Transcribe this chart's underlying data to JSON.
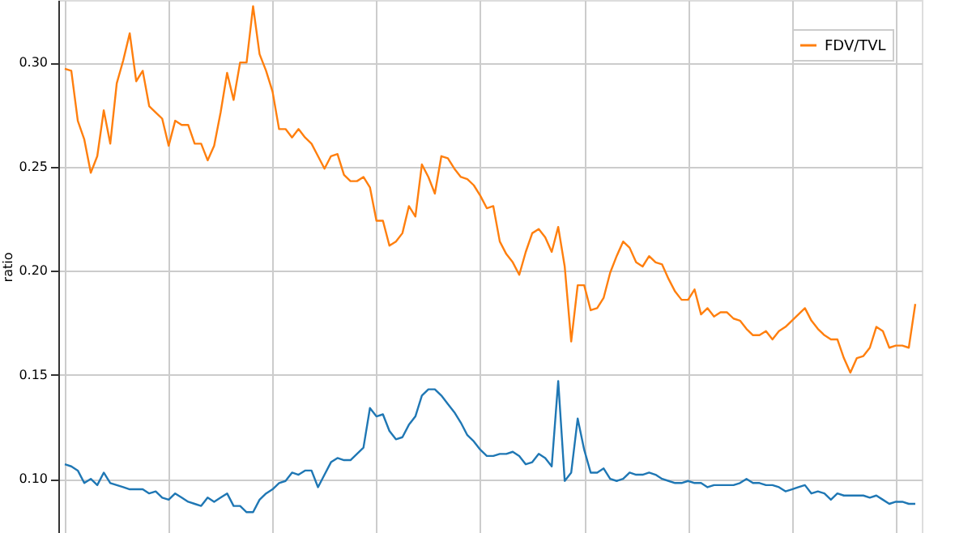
{
  "chart_data": {
    "type": "line",
    "ylabel": "ratio",
    "categories": [
      null,
      null,
      null,
      null,
      null,
      null,
      null,
      null,
      null,
      null,
      null,
      null,
      null,
      null,
      null,
      null,
      null,
      null,
      null,
      null,
      null,
      null,
      null,
      null,
      null,
      null,
      null,
      null,
      null,
      null,
      null,
      null,
      null,
      null,
      null,
      null,
      null,
      null,
      null,
      null,
      null,
      null,
      null,
      null,
      null,
      null,
      null,
      null,
      null,
      null,
      null,
      null,
      null,
      null,
      null,
      null,
      null,
      null,
      null,
      null,
      null,
      null,
      null,
      null,
      null,
      null,
      null,
      null,
      null,
      null,
      null,
      null,
      null,
      null,
      null,
      null,
      null,
      null,
      null,
      null,
      null,
      null,
      null,
      null,
      null,
      null,
      null,
      null,
      null,
      null,
      null,
      null,
      null,
      null,
      null,
      null,
      null,
      null,
      null,
      null,
      null,
      null,
      null,
      null,
      null,
      null,
      null,
      null,
      null,
      null,
      null,
      null,
      null,
      null,
      null,
      null,
      null,
      null,
      null,
      null,
      null,
      null,
      null,
      null,
      null,
      null,
      null,
      null,
      null,
      null,
      null,
      null
    ],
    "series": [
      {
        "color": "#1f77b4",
        "values": [
          0.107,
          0.106,
          0.104,
          0.098,
          0.1,
          0.097,
          0.103,
          0.098,
          0.097,
          0.096,
          0.095,
          0.095,
          0.095,
          0.093,
          0.094,
          0.091,
          0.09,
          0.093,
          0.091,
          0.089,
          0.088,
          0.087,
          0.091,
          0.089,
          0.091,
          0.093,
          0.087,
          0.087,
          0.084,
          0.084,
          0.09,
          0.093,
          0.095,
          0.098,
          0.099,
          0.103,
          0.102,
          0.104,
          0.104,
          0.096,
          0.102,
          0.108,
          0.11,
          0.109,
          0.109,
          0.112,
          0.115,
          0.134,
          0.13,
          0.131,
          0.123,
          0.119,
          0.12,
          0.126,
          0.13,
          0.14,
          0.143,
          0.143,
          0.14,
          0.136,
          0.132,
          0.127,
          0.121,
          0.118,
          0.114,
          0.111,
          0.111,
          0.112,
          0.112,
          0.113,
          0.111,
          0.107,
          0.108,
          0.112,
          0.11,
          0.106,
          0.147,
          0.099,
          0.103,
          0.129,
          0.114,
          0.103,
          0.103,
          0.105,
          0.1,
          0.099,
          0.1,
          0.103,
          0.102,
          0.102,
          0.103,
          0.102,
          0.1,
          0.099,
          0.098,
          0.098,
          0.099,
          0.098,
          0.098,
          0.096,
          0.097,
          0.097,
          0.097,
          0.097,
          0.098,
          0.1,
          0.098,
          0.098,
          0.097,
          0.097,
          0.096,
          0.094,
          0.095,
          0.096,
          0.097,
          0.093,
          0.094,
          0.093,
          0.09,
          0.093,
          0.092,
          0.092,
          0.092,
          0.092,
          0.091,
          0.092,
          0.09,
          0.088,
          0.089,
          0.089,
          0.088,
          0.088
        ]
      },
      {
        "name": "FDV/TVL",
        "color": "#ff7f0e",
        "values": [
          0.297,
          0.296,
          0.272,
          0.263,
          0.247,
          0.255,
          0.277,
          0.261,
          0.29,
          0.301,
          0.314,
          0.291,
          0.296,
          0.279,
          0.276,
          0.273,
          0.26,
          0.272,
          0.27,
          0.27,
          0.261,
          0.261,
          0.253,
          0.26,
          0.276,
          0.295,
          0.282,
          0.3,
          0.3,
          0.327,
          0.304,
          0.296,
          0.286,
          0.268,
          0.268,
          0.264,
          0.268,
          0.264,
          0.261,
          0.255,
          0.249,
          0.255,
          0.256,
          0.246,
          0.243,
          0.243,
          0.245,
          0.24,
          0.224,
          0.224,
          0.212,
          0.214,
          0.218,
          0.231,
          0.226,
          0.251,
          0.245,
          0.237,
          0.255,
          0.254,
          0.249,
          0.245,
          0.244,
          0.241,
          0.236,
          0.23,
          0.231,
          0.214,
          0.208,
          0.204,
          0.198,
          0.209,
          0.218,
          0.22,
          0.216,
          0.209,
          0.221,
          0.202,
          0.166,
          0.193,
          0.193,
          0.181,
          0.182,
          0.187,
          0.199,
          0.207,
          0.214,
          0.211,
          0.204,
          0.202,
          0.207,
          0.204,
          0.203,
          0.196,
          0.19,
          0.186,
          0.186,
          0.191,
          0.179,
          0.182,
          0.178,
          0.18,
          0.18,
          0.177,
          0.176,
          0.172,
          0.169,
          0.169,
          0.171,
          0.167,
          0.171,
          0.173,
          0.176,
          0.179,
          0.182,
          0.176,
          0.172,
          0.169,
          0.167,
          0.167,
          0.158,
          0.151,
          0.158,
          0.159,
          0.163,
          0.173,
          0.171,
          0.163,
          0.164,
          0.164,
          0.163,
          0.184
        ]
      }
    ],
    "ylim": [
      0.074,
      0.33
    ],
    "yticks": [
      {
        "value": 0.1,
        "label": "0.10"
      },
      {
        "value": 0.15,
        "label": "0.15"
      },
      {
        "value": 0.2,
        "label": "0.20"
      },
      {
        "value": 0.25,
        "label": "0.25"
      },
      {
        "value": 0.3,
        "label": "0.30"
      }
    ],
    "grid": true,
    "legend": "top right",
    "tick_labels": "y"
  }
}
